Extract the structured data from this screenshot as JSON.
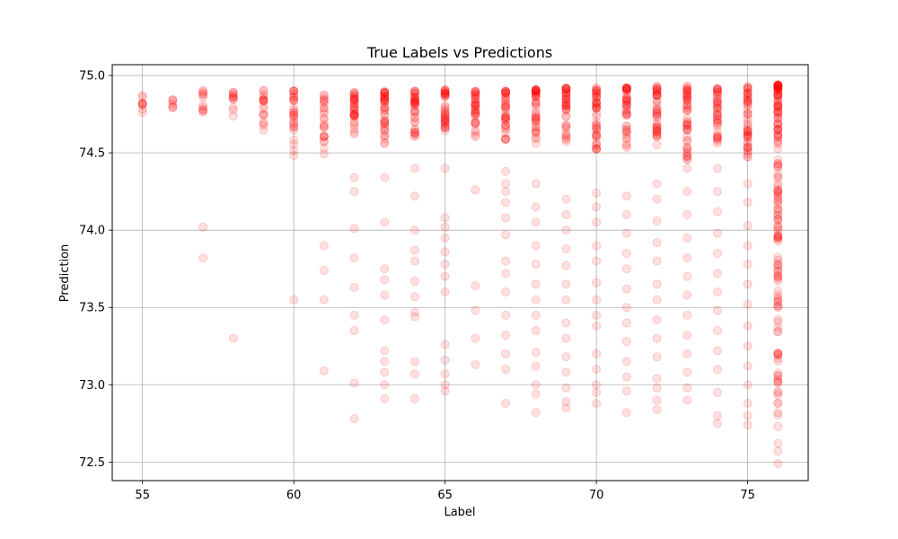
{
  "chart_data": {
    "type": "scatter",
    "title": "True Labels vs Predictions",
    "xlabel": "Label",
    "ylabel": "Prediction",
    "xlim": [
      54,
      77
    ],
    "ylim": [
      72.38,
      75.07
    ],
    "xticks": [
      55,
      60,
      65,
      70,
      75
    ],
    "yticks": [
      72.5,
      73.0,
      73.5,
      74.0,
      74.5,
      75.0
    ],
    "xtick_labels": [
      "55",
      "60",
      "65",
      "70",
      "75"
    ],
    "ytick_labels": [
      "72.5",
      "73.0",
      "73.5",
      "74.0",
      "74.5",
      "75.0"
    ],
    "grid": true,
    "marker_color": "#ff0000",
    "marker_alpha": 0.12,
    "series": [
      {
        "x_values": [
          55,
          56,
          57,
          58,
          59,
          60,
          61,
          62,
          63,
          64,
          65,
          66,
          67,
          68,
          69,
          70,
          71,
          72,
          73,
          74,
          75,
          76
        ],
        "dense_band_top": [
          74.88,
          74.85,
          74.91,
          74.9,
          74.91,
          74.9,
          74.88,
          74.89,
          74.9,
          74.9,
          74.91,
          74.9,
          74.9,
          74.91,
          74.92,
          74.92,
          74.92,
          74.93,
          74.93,
          74.92,
          74.93,
          74.94
        ],
        "dense_band_bottom": [
          74.76,
          74.77,
          74.74,
          74.73,
          74.62,
          74.45,
          74.49,
          74.62,
          74.55,
          74.6,
          74.62,
          74.6,
          74.58,
          74.55,
          74.55,
          74.5,
          74.52,
          74.55,
          74.45,
          74.55,
          74.45,
          72.65
        ],
        "sparse_points": [
          [
            57,
            74.02
          ],
          [
            57,
            73.82
          ],
          [
            58,
            73.3
          ],
          [
            60,
            73.55
          ],
          [
            61,
            73.9
          ],
          [
            61,
            73.74
          ],
          [
            61,
            73.55
          ],
          [
            61,
            73.09
          ],
          [
            62,
            74.34
          ],
          [
            62,
            74.25
          ],
          [
            62,
            74.01
          ],
          [
            62,
            73.82
          ],
          [
            62,
            73.63
          ],
          [
            62,
            73.45
          ],
          [
            62,
            73.35
          ],
          [
            62,
            73.01
          ],
          [
            62,
            72.78
          ],
          [
            63,
            74.34
          ],
          [
            63,
            74.05
          ],
          [
            63,
            73.75
          ],
          [
            63,
            73.68
          ],
          [
            63,
            73.58
          ],
          [
            63,
            73.42
          ],
          [
            63,
            73.22
          ],
          [
            63,
            73.15
          ],
          [
            63,
            73.08
          ],
          [
            63,
            73.0
          ],
          [
            63,
            72.91
          ],
          [
            64,
            74.4
          ],
          [
            64,
            74.22
          ],
          [
            64,
            74.0
          ],
          [
            64,
            73.87
          ],
          [
            64,
            73.8
          ],
          [
            64,
            73.67
          ],
          [
            64,
            73.57
          ],
          [
            64,
            73.47
          ],
          [
            64,
            73.44
          ],
          [
            64,
            73.15
          ],
          [
            64,
            73.07
          ],
          [
            64,
            72.91
          ],
          [
            65,
            74.4
          ],
          [
            65,
            74.08
          ],
          [
            65,
            74.02
          ],
          [
            65,
            73.95
          ],
          [
            65,
            73.86
          ],
          [
            65,
            73.78
          ],
          [
            65,
            73.7
          ],
          [
            65,
            73.6
          ],
          [
            65,
            73.26
          ],
          [
            65,
            73.16
          ],
          [
            65,
            73.07
          ],
          [
            65,
            73.0
          ],
          [
            65,
            72.96
          ],
          [
            66,
            74.26
          ],
          [
            66,
            73.64
          ],
          [
            66,
            73.48
          ],
          [
            66,
            73.3
          ],
          [
            66,
            73.13
          ],
          [
            67,
            74.38
          ],
          [
            67,
            74.3
          ],
          [
            67,
            74.25
          ],
          [
            67,
            74.18
          ],
          [
            67,
            74.08
          ],
          [
            67,
            73.97
          ],
          [
            67,
            73.8
          ],
          [
            67,
            73.72
          ],
          [
            67,
            73.6
          ],
          [
            67,
            73.45
          ],
          [
            67,
            73.32
          ],
          [
            67,
            73.2
          ],
          [
            67,
            73.1
          ],
          [
            67,
            72.88
          ],
          [
            68,
            74.3
          ],
          [
            68,
            74.15
          ],
          [
            68,
            74.05
          ],
          [
            68,
            73.9
          ],
          [
            68,
            73.78
          ],
          [
            68,
            73.65
          ],
          [
            68,
            73.55
          ],
          [
            68,
            73.45
          ],
          [
            68,
            73.35
          ],
          [
            68,
            73.21
          ],
          [
            68,
            73.12
          ],
          [
            68,
            73.0
          ],
          [
            68,
            72.94
          ],
          [
            68,
            72.82
          ],
          [
            69,
            74.2
          ],
          [
            69,
            74.1
          ],
          [
            69,
            74.0
          ],
          [
            69,
            73.88
          ],
          [
            69,
            73.77
          ],
          [
            69,
            73.65
          ],
          [
            69,
            73.55
          ],
          [
            69,
            73.4
          ],
          [
            69,
            73.3
          ],
          [
            69,
            73.18
          ],
          [
            69,
            73.08
          ],
          [
            69,
            72.98
          ],
          [
            69,
            72.89
          ],
          [
            69,
            72.85
          ],
          [
            70,
            74.24
          ],
          [
            70,
            74.15
          ],
          [
            70,
            74.05
          ],
          [
            70,
            73.9
          ],
          [
            70,
            73.8
          ],
          [
            70,
            73.66
          ],
          [
            70,
            73.55
          ],
          [
            70,
            73.45
          ],
          [
            70,
            73.38
          ],
          [
            70,
            73.2
          ],
          [
            70,
            73.1
          ],
          [
            70,
            73.0
          ],
          [
            70,
            72.95
          ],
          [
            70,
            72.88
          ],
          [
            71,
            74.22
          ],
          [
            71,
            74.1
          ],
          [
            71,
            73.98
          ],
          [
            71,
            73.85
          ],
          [
            71,
            73.75
          ],
          [
            71,
            73.62
          ],
          [
            71,
            73.5
          ],
          [
            71,
            73.4
          ],
          [
            71,
            73.28
          ],
          [
            71,
            73.15
          ],
          [
            71,
            73.05
          ],
          [
            71,
            72.96
          ],
          [
            71,
            72.82
          ],
          [
            72,
            74.3
          ],
          [
            72,
            74.2
          ],
          [
            72,
            74.06
          ],
          [
            72,
            73.92
          ],
          [
            72,
            73.8
          ],
          [
            72,
            73.65
          ],
          [
            72,
            73.55
          ],
          [
            72,
            73.42
          ],
          [
            72,
            73.3
          ],
          [
            72,
            73.18
          ],
          [
            72,
            73.04
          ],
          [
            72,
            72.98
          ],
          [
            72,
            72.9
          ],
          [
            72,
            72.84
          ],
          [
            73,
            74.4
          ],
          [
            73,
            74.25
          ],
          [
            73,
            74.1
          ],
          [
            73,
            73.95
          ],
          [
            73,
            73.82
          ],
          [
            73,
            73.7
          ],
          [
            73,
            73.58
          ],
          [
            73,
            73.45
          ],
          [
            73,
            73.32
          ],
          [
            73,
            73.2
          ],
          [
            73,
            73.08
          ],
          [
            73,
            72.98
          ],
          [
            73,
            72.9
          ],
          [
            74,
            74.4
          ],
          [
            74,
            74.25
          ],
          [
            74,
            74.12
          ],
          [
            74,
            73.98
          ],
          [
            74,
            73.85
          ],
          [
            74,
            73.72
          ],
          [
            74,
            73.6
          ],
          [
            74,
            73.48
          ],
          [
            74,
            73.35
          ],
          [
            74,
            73.22
          ],
          [
            74,
            73.1
          ],
          [
            74,
            72.95
          ],
          [
            74,
            72.8
          ],
          [
            74,
            72.75
          ],
          [
            75,
            74.3
          ],
          [
            75,
            74.18
          ],
          [
            75,
            74.03
          ],
          [
            75,
            73.9
          ],
          [
            75,
            73.78
          ],
          [
            75,
            73.65
          ],
          [
            75,
            73.52
          ],
          [
            75,
            73.38
          ],
          [
            75,
            73.25
          ],
          [
            75,
            73.12
          ],
          [
            75,
            73.0
          ],
          [
            75,
            72.88
          ],
          [
            75,
            72.8
          ],
          [
            75,
            72.74
          ],
          [
            76,
            72.62
          ],
          [
            76,
            72.57
          ],
          [
            76,
            72.49
          ]
        ]
      }
    ]
  }
}
